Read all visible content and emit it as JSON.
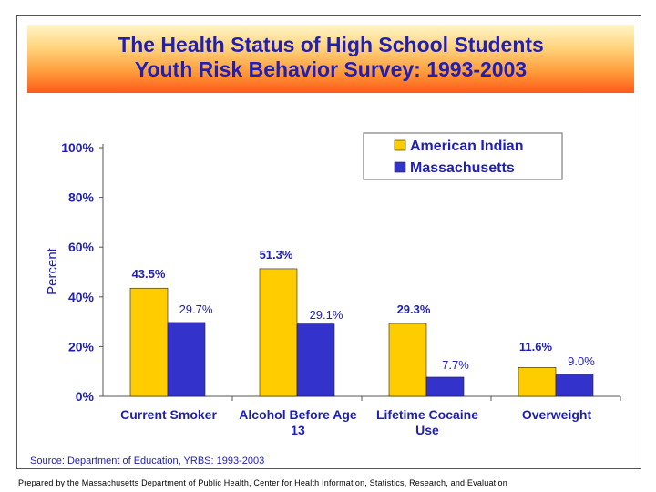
{
  "title": {
    "line1": "The Health Status of High School Students",
    "line2": "Youth Risk Behavior Survey: 1993-2003"
  },
  "source": "Source: Department of Education, YRBS: 1993-2003",
  "footer": "Prepared by the Massachusetts Department of Public Health, Center for Health Information, Statistics, Research, and Evaluation",
  "colors": {
    "american_indian": "#FFCC00",
    "massachusetts": "#3333CC",
    "title_text": "#1F1FB4"
  },
  "chart_data": {
    "type": "bar",
    "title": "The Health Status of High School Students Youth Risk Behavior Survey: 1993-2003",
    "xlabel": "",
    "ylabel": "Percent",
    "ylim": [
      0,
      100
    ],
    "yticks": [
      "0%",
      "20%",
      "40%",
      "60%",
      "80%",
      "100%"
    ],
    "legend_position": "top-right",
    "grid": false,
    "categories": [
      [
        "Current Smoker"
      ],
      [
        "Alcohol Before Age",
        "13"
      ],
      [
        "Lifetime Cocaine",
        "Use"
      ],
      [
        "Overweight"
      ]
    ],
    "series": [
      {
        "name": "American Indian",
        "color": "#FFCC00",
        "values": [
          43.5,
          51.3,
          29.3,
          11.6
        ],
        "labels": [
          "43.5%",
          "51.3%",
          "29.3%",
          "11.6%"
        ]
      },
      {
        "name": "Massachusetts",
        "color": "#3333CC",
        "values": [
          29.7,
          29.1,
          7.7,
          9.0
        ],
        "labels": [
          "29.7%",
          "29.1%",
          "7.7%",
          "9.0%"
        ]
      }
    ]
  }
}
